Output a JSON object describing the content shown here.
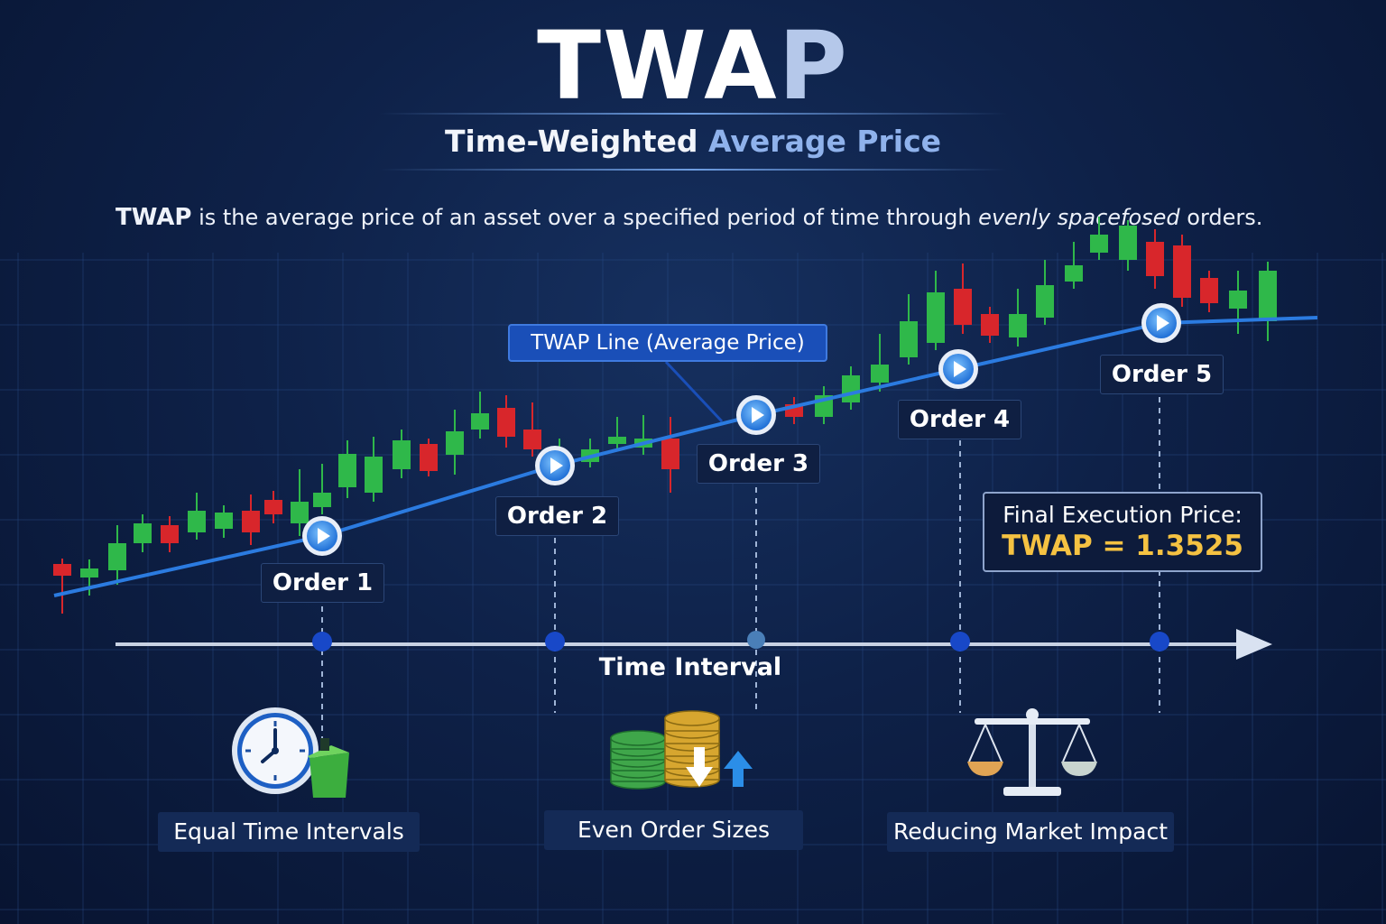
{
  "header": {
    "title_part1": "TWA",
    "title_part2": "P",
    "subtitle_part1": "Time-Weighted ",
    "subtitle_part2": "Average Price"
  },
  "description": {
    "term": "TWAP",
    "text": " is the average price of an asset over a specified period of time through ",
    "italic": "evenly spacefosed",
    "tail": " orders."
  },
  "callout": {
    "label": "TWAP Line (Average Price)"
  },
  "orders": [
    {
      "label": "Order 1"
    },
    {
      "label": "Order 2"
    },
    {
      "label": "Order 3"
    },
    {
      "label": "Order 4"
    },
    {
      "label": "Order 5"
    }
  ],
  "final_execution": {
    "label": "Final Execution Price:",
    "value": "TWAP = 1.3525"
  },
  "axis": {
    "title": "Time Interval"
  },
  "features": [
    {
      "label": "Equal Time Intervals",
      "icon": "clock-icon"
    },
    {
      "label": "Even Order Sizes",
      "icon": "coin-stacks-icon"
    },
    {
      "label": "Reducing Market Impact",
      "icon": "balance-scale-icon"
    }
  ],
  "colors": {
    "background": "#0e2148",
    "bullish": "#2fb84a",
    "bearish": "#d8262b",
    "twap_line": "#2b7be0",
    "highlight": "#f5c242",
    "callout": "#1a4fb8"
  }
}
